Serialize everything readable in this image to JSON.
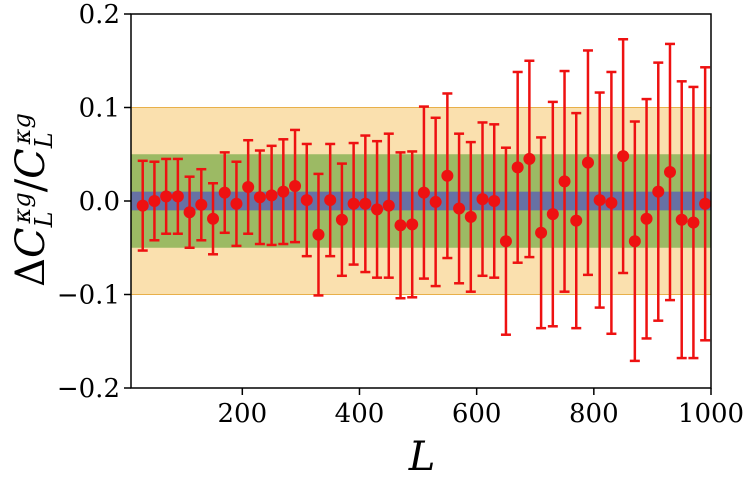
{
  "chart_data": {
    "type": "scatter",
    "title": "",
    "xlabel": "L",
    "ylabel": "ΔC_L^{κg}/C_L^{κg}",
    "xlim": [
      10,
      1000
    ],
    "ylim": [
      -0.2,
      0.2
    ],
    "x_ticks": [
      200,
      400,
      600,
      800,
      1000
    ],
    "x_tick_labels": [
      "200",
      "400",
      "600",
      "800",
      "1000"
    ],
    "y_ticks": [
      -0.2,
      -0.1,
      0.0,
      0.1,
      0.2
    ],
    "y_tick_labels": [
      "−0.2",
      "−0.1",
      "0.0",
      "0.1",
      "0.2"
    ],
    "grid": false,
    "bands": [
      {
        "ymin": -0.1,
        "ymax": 0.1,
        "color": "#f5c76b",
        "opacity": 0.55
      },
      {
        "ymin": -0.05,
        "ymax": 0.05,
        "color": "#4f9a28",
        "opacity": 0.55
      },
      {
        "ymin": -0.01,
        "ymax": 0.01,
        "color": "#5a5fb4",
        "opacity": 0.8
      }
    ],
    "band_xrange": [
      10,
      1000
    ],
    "marker_color": "#ee1111",
    "series": [
      {
        "x": [
          30,
          50,
          70,
          90,
          110,
          130,
          150,
          170,
          190,
          210,
          230,
          250,
          270,
          290,
          310,
          330,
          350,
          370,
          390,
          410,
          430,
          450,
          470,
          490,
          510,
          530,
          550,
          570,
          590,
          610,
          630,
          650,
          670,
          690,
          710,
          730,
          750,
          770,
          790,
          810,
          830,
          850,
          870,
          890,
          910,
          930,
          950,
          970,
          990
        ],
        "y": [
          -0.005,
          0.0,
          0.005,
          0.005,
          -0.012,
          -0.004,
          -0.019,
          0.009,
          -0.003,
          0.015,
          0.004,
          0.006,
          0.01,
          0.016,
          0.001,
          -0.036,
          0.001,
          -0.02,
          -0.003,
          -0.003,
          -0.009,
          -0.005,
          -0.026,
          -0.025,
          0.009,
          -0.001,
          0.027,
          -0.008,
          -0.017,
          0.002,
          0.0,
          -0.043,
          0.036,
          0.045,
          -0.034,
          -0.014,
          0.021,
          -0.021,
          0.041,
          0.001,
          -0.002,
          0.048,
          -0.043,
          -0.019,
          0.01,
          0.031,
          -0.02,
          -0.023,
          -0.003
        ],
        "yerr": [
          0.048,
          0.042,
          0.04,
          0.04,
          0.038,
          0.038,
          0.038,
          0.043,
          0.045,
          0.05,
          0.05,
          0.053,
          0.056,
          0.06,
          0.06,
          0.065,
          0.06,
          0.06,
          0.065,
          0.073,
          0.073,
          0.077,
          0.078,
          0.078,
          0.092,
          0.09,
          0.088,
          0.08,
          0.08,
          0.082,
          0.082,
          0.1,
          0.102,
          0.105,
          0.102,
          0.12,
          0.118,
          0.115,
          0.12,
          0.115,
          0.14,
          0.125,
          0.128,
          0.128,
          0.138,
          0.137,
          0.148,
          0.145,
          0.146
        ]
      }
    ]
  }
}
